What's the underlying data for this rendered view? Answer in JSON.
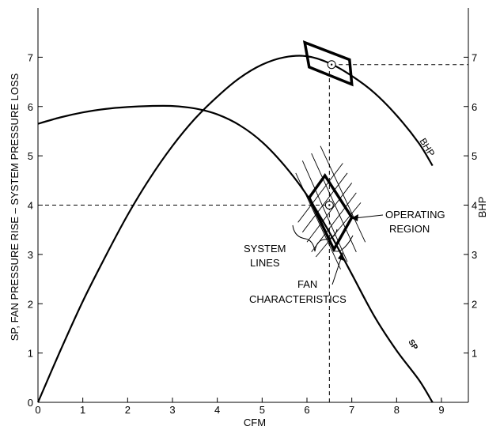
{
  "chart_data": {
    "type": "line",
    "title": "",
    "xlabel": "CFM",
    "ylabel_left": "SP, FAN PRESSURE RISE – SYSTEM PRESSURE LOSS",
    "ylabel_right": "BHP",
    "xlim": [
      0,
      9.6
    ],
    "ylim": [
      0,
      8
    ],
    "x_ticks": [
      0,
      1,
      2,
      3,
      4,
      5,
      6,
      7,
      8,
      9
    ],
    "y_ticks_left": [
      0,
      1,
      2,
      3,
      4,
      5,
      6,
      7
    ],
    "y_ticks_right": [
      1,
      2,
      3,
      4,
      5,
      6,
      7
    ],
    "grid": false,
    "series": [
      {
        "name": "SP",
        "x": [
          0,
          0.5,
          1,
          1.5,
          2,
          2.5,
          3,
          3.5,
          4,
          4.5,
          5,
          5.5,
          6,
          6.5,
          7,
          7.5,
          8,
          8.5,
          8.8
        ],
        "y": [
          5.65,
          5.78,
          5.88,
          5.95,
          5.99,
          6.01,
          6.01,
          5.96,
          5.84,
          5.62,
          5.28,
          4.8,
          4.2,
          3.45,
          2.6,
          1.75,
          1.05,
          0.45,
          0.0
        ]
      },
      {
        "name": "BHP",
        "x": [
          0,
          0.5,
          1,
          1.5,
          2,
          2.5,
          3,
          3.5,
          4,
          4.5,
          5,
          5.5,
          6,
          6.5,
          7,
          7.5,
          8,
          8.5,
          8.8
        ],
        "y": [
          0.0,
          1.05,
          2.05,
          2.95,
          3.8,
          4.55,
          5.2,
          5.75,
          6.2,
          6.58,
          6.85,
          7.0,
          7.02,
          6.88,
          6.62,
          6.28,
          5.82,
          5.25,
          4.8
        ]
      },
      {
        "name": "SYSTEM LINES",
        "lines": [
          {
            "x": [
              5.8,
              6.8
            ],
            "y": [
              3.65,
              4.85
            ]
          },
          {
            "x": [
              5.9,
              6.9
            ],
            "y": [
              3.45,
              4.65
            ]
          },
          {
            "x": [
              6.0,
              7.0
            ],
            "y": [
              3.25,
              4.45
            ]
          },
          {
            "x": [
              6.1,
              7.1
            ],
            "y": [
              3.05,
              4.25
            ]
          },
          {
            "x": [
              6.2,
              7.2
            ],
            "y": [
              2.95,
              4.05
            ]
          }
        ]
      },
      {
        "name": "FAN CHARACTERISTICS",
        "lines": [
          {
            "x": [
              5.9,
              6.9
            ],
            "y": [
              4.9,
              2.85
            ]
          },
          {
            "x": [
              6.1,
              7.1
            ],
            "y": [
              5.05,
              3.05
            ]
          },
          {
            "x": [
              6.3,
              7.3
            ],
            "y": [
              5.2,
              3.25
            ]
          },
          {
            "x": [
              5.75,
              6.75
            ],
            "y": [
              4.65,
              2.7
            ]
          }
        ]
      }
    ],
    "operating_point_sp": {
      "x": 6.5,
      "y": 4.0
    },
    "operating_point_bhp": {
      "x": 6.55,
      "y": 6.85
    },
    "operating_region_sp": {
      "x": [
        6.05,
        6.4,
        7.0,
        6.6
      ],
      "y": [
        4.15,
        4.6,
        3.75,
        3.1
      ]
    },
    "operating_region_bhp": {
      "x": [
        5.95,
        6.05,
        7.0,
        6.95
      ],
      "y": [
        7.3,
        6.8,
        6.45,
        6.95
      ]
    },
    "reference_lines": [
      {
        "x": [
          0,
          6.5
        ],
        "y": [
          4.0,
          4.0
        ]
      },
      {
        "x": [
          6.5,
          6.5
        ],
        "y": [
          0,
          6.85
        ]
      },
      {
        "x": [
          6.55,
          9.6
        ],
        "y": [
          6.85,
          6.85
        ]
      }
    ],
    "annotations": {
      "bhp_label": "BHP",
      "sp_label": "SP",
      "operating_region_line1": "OPERATING",
      "operating_region_line2": "REGION",
      "system_lines_line1": "SYSTEM",
      "system_lines_line2": "LINES",
      "fan_char_line1": "FAN",
      "fan_char_line2": "CHARACTERISTICS"
    }
  }
}
